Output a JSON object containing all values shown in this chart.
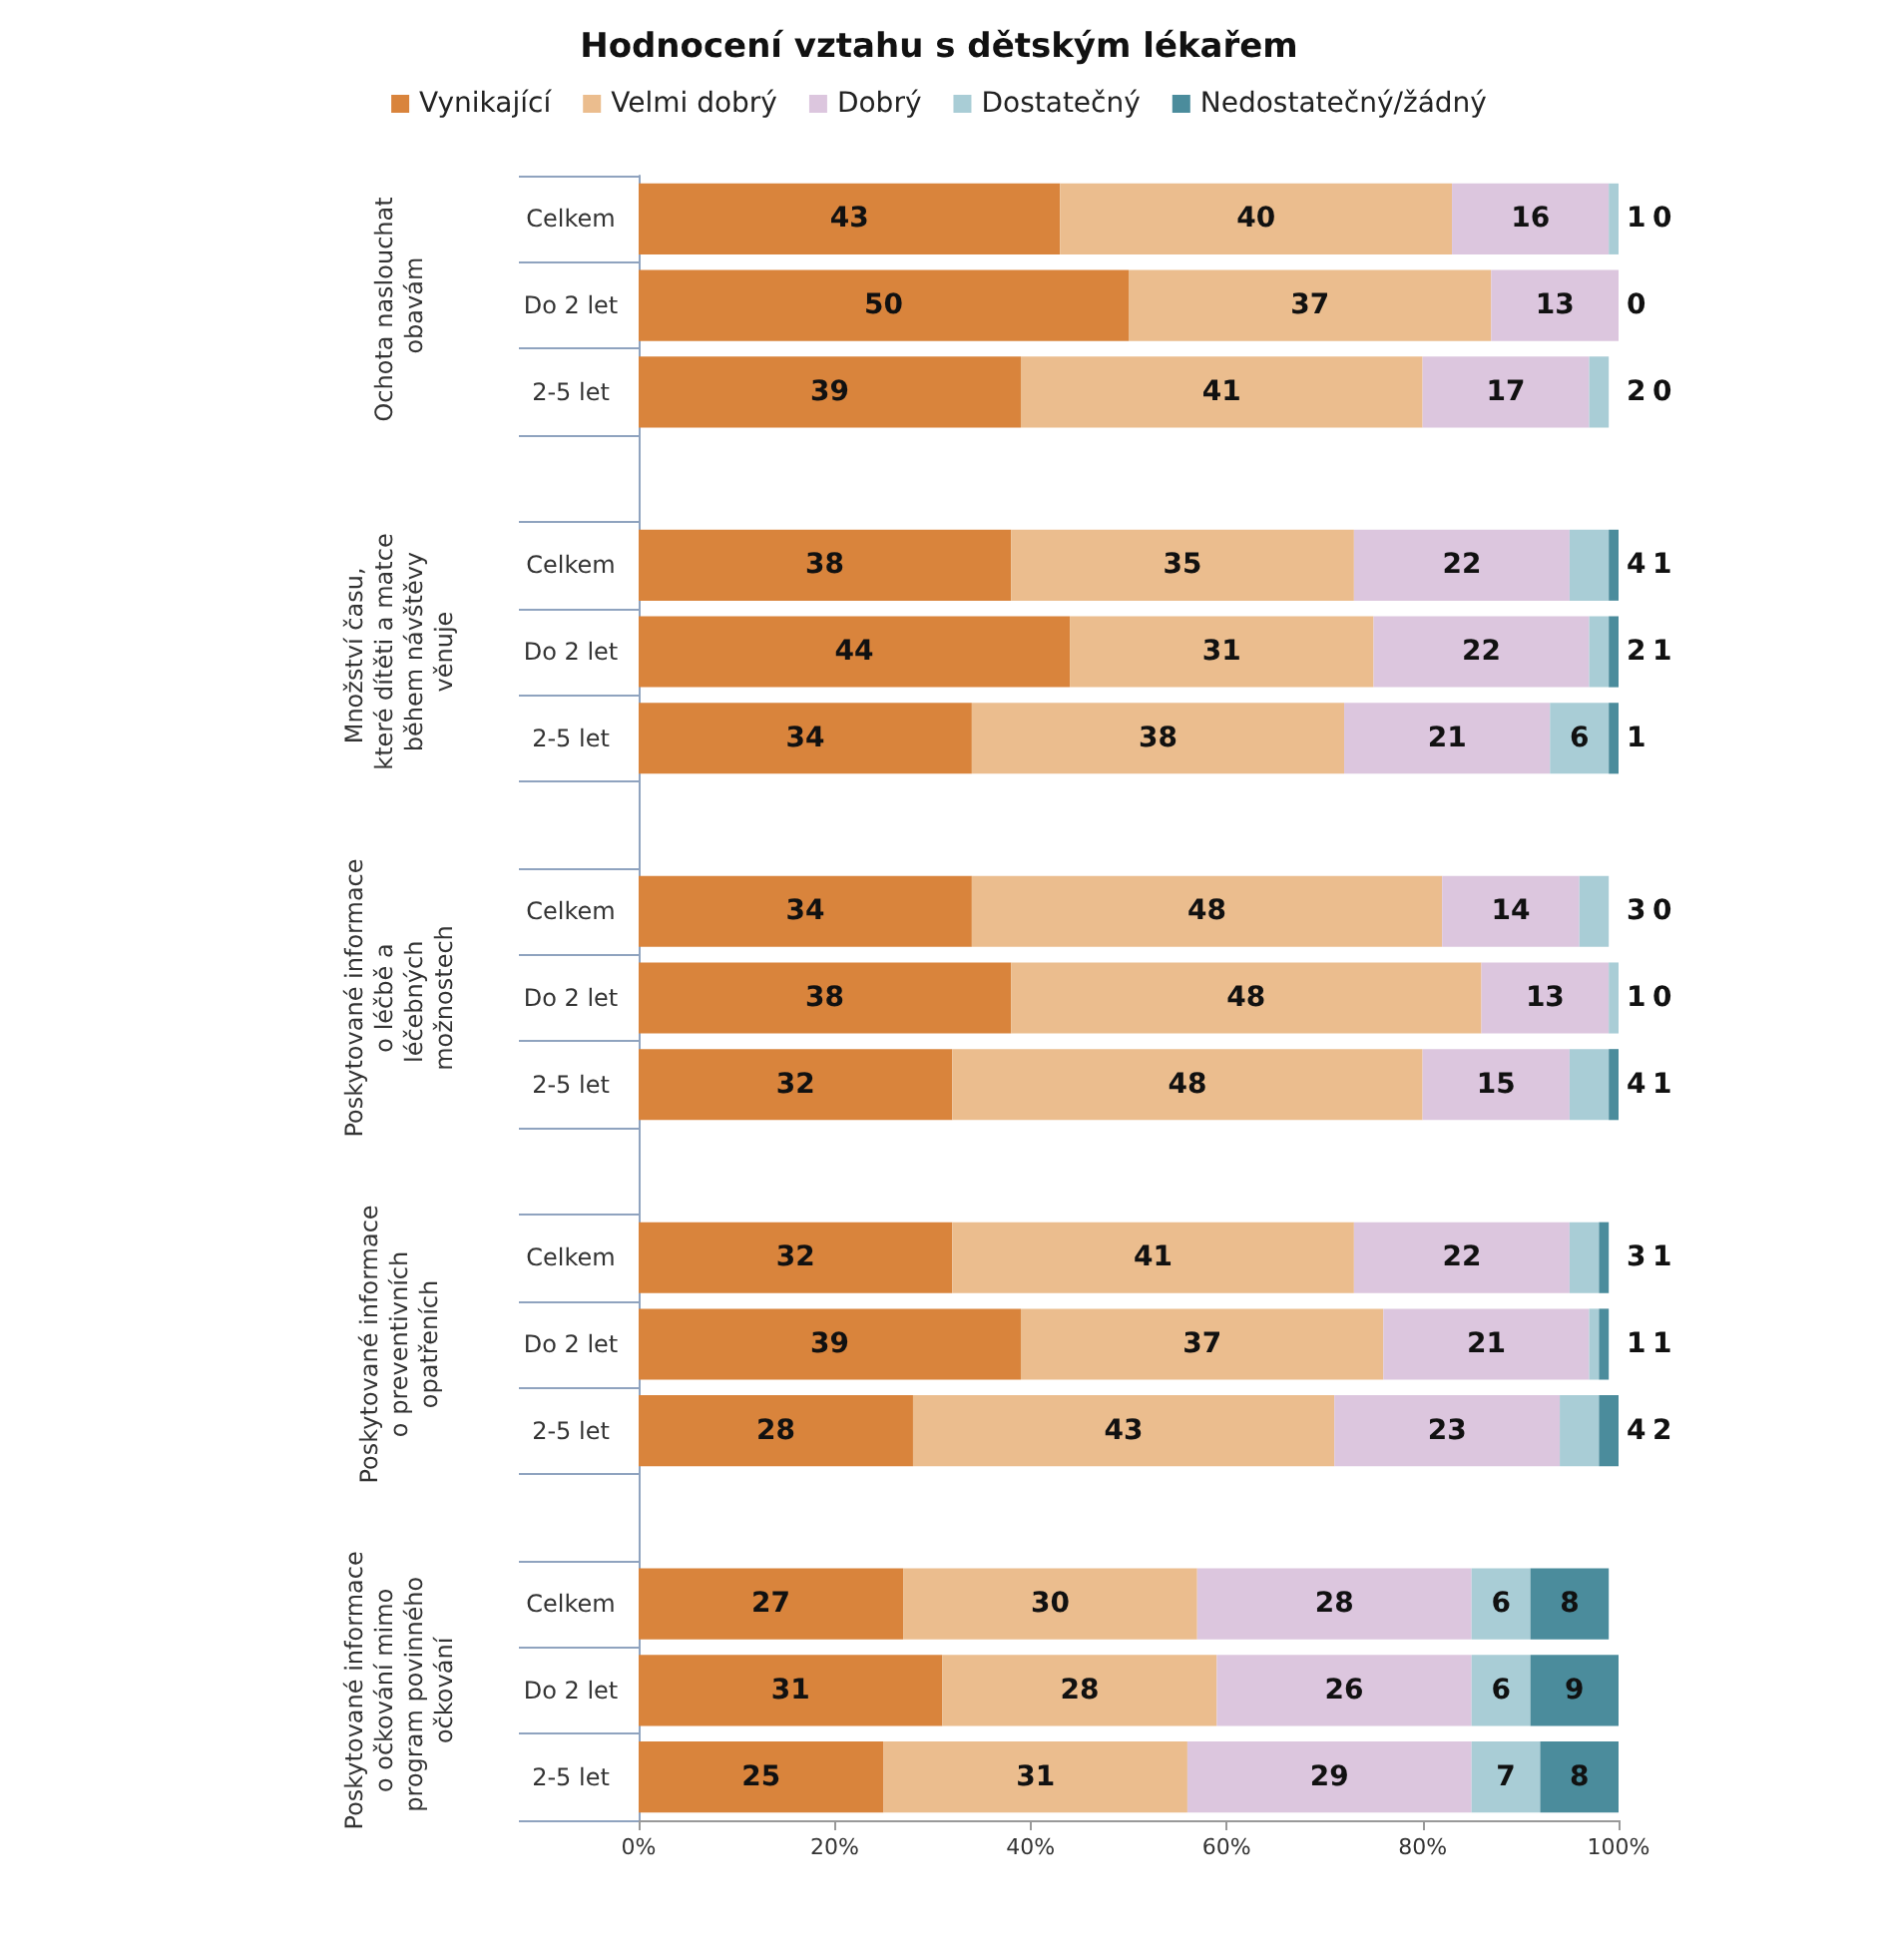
{
  "chart_data": {
    "type": "bar",
    "title": "Hodnocení vztahu s dětským lékařem",
    "orientation": "horizontal",
    "stacked": true,
    "legend": "top",
    "grid": false,
    "categories": [
      "Celkem",
      "Do 2 let",
      "2-5 let",
      null,
      "Celkem",
      "Do 2 let",
      "2-5 let",
      null,
      "Celkem",
      "Do 2 let",
      "2-5 let",
      null,
      "Celkem",
      "Do 2 let",
      "2-5 let",
      null,
      "Celkem",
      "Do 2 let",
      "2-5 let"
    ],
    "annotations": [
      "Ochota naslouchat obavám",
      "Množství času, které dítěti a matce během návštěvy věnuje",
      "Poskytované informace o léčbě a léčebných možnostech",
      "Poskytované informace o preventivních opatřeních",
      "Poskytované informace o očkování mimo program povinného očkování"
    ],
    "xlim": [
      0,
      100
    ],
    "xticks": [
      {
        "value": 0,
        "label": "0%"
      },
      {
        "value": 20,
        "label": "20%"
      },
      {
        "value": 40,
        "label": "40%"
      },
      {
        "value": 60,
        "label": "60%"
      },
      {
        "value": 80,
        "label": "80%"
      },
      {
        "value": 100,
        "label": "100%"
      }
    ],
    "series": [
      {
        "name": "Vynikající",
        "color": "#d9843c",
        "values": [
          43,
          50,
          39,
          null,
          38,
          44,
          34,
          null,
          34,
          38,
          32,
          null,
          32,
          39,
          28,
          null,
          27,
          31,
          25
        ],
        "value_labels": [
          "43",
          "50",
          "39",
          null,
          "38",
          "44",
          "34",
          null,
          "34",
          "38",
          "32",
          null,
          "32",
          "39",
          "28",
          null,
          "27",
          "31",
          "25"
        ]
      },
      {
        "name": "Velmi dobrý",
        "color": "#ebbd8e",
        "values": [
          40,
          37,
          41,
          null,
          35,
          31,
          38,
          null,
          48,
          48,
          48,
          null,
          41,
          37,
          43,
          null,
          30,
          28,
          31
        ],
        "value_labels": [
          "40",
          "37",
          "41",
          null,
          "35",
          "31",
          "38",
          null,
          "48",
          "48",
          "48",
          null,
          "41",
          "37",
          "43",
          null,
          "30",
          "28",
          "31"
        ]
      },
      {
        "name": "Dobrý",
        "color": "#dcc6de",
        "values": [
          16,
          13,
          17,
          null,
          22,
          22,
          21,
          null,
          14,
          13,
          15,
          null,
          22,
          21,
          23,
          null,
          28,
          26,
          29
        ],
        "value_labels": [
          "16",
          "13",
          "17",
          null,
          "22",
          "22",
          "21",
          null,
          "14",
          "13",
          "15",
          null,
          "22",
          "21",
          "23",
          null,
          "28",
          "26",
          "29"
        ]
      },
      {
        "name": "Dostatečný",
        "color": "#a9cdd6",
        "values": [
          1,
          0,
          2,
          null,
          4,
          2,
          6,
          null,
          3,
          1,
          4,
          null,
          3,
          1,
          4,
          null,
          6,
          6,
          7
        ],
        "value_labels": [
          "1",
          "0",
          "2",
          null,
          "4",
          "2",
          "6",
          null,
          "3",
          "1",
          "4",
          null,
          "3",
          "1",
          "4",
          null,
          "6",
          "6",
          "7"
        ]
      },
      {
        "name": "Nedostatečný/žádný",
        "color": "#4b8c9c",
        "values": [
          0,
          0,
          0,
          null,
          1,
          1,
          1,
          null,
          0,
          0,
          1,
          null,
          1,
          1,
          2,
          null,
          8,
          9,
          8
        ],
        "value_labels": [
          "0",
          null,
          "0",
          null,
          "1",
          "1",
          "1",
          null,
          "0",
          "0",
          "1",
          null,
          "1",
          "1",
          "2",
          null,
          "8",
          "9",
          "8"
        ]
      }
    ]
  }
}
